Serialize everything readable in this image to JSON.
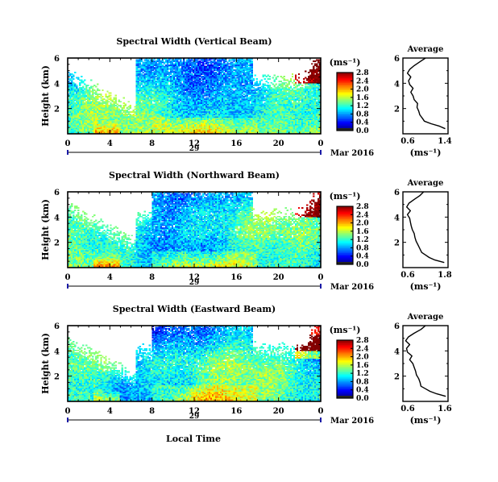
{
  "figure": {
    "xlabel": "Local Time",
    "date_day": "29",
    "date_month_year": "Mar 2016"
  },
  "chart_data": [
    {
      "type": "heatmap",
      "title": "Spectral Width (Vertical Beam)",
      "ylabel": "Height (km)",
      "xlim": [
        0,
        24
      ],
      "ylim": [
        0,
        6
      ],
      "x_ticks": [
        "0",
        "4",
        "8",
        "12",
        "16",
        "20",
        "0"
      ],
      "y_ticks": [
        "2",
        "4",
        "6"
      ],
      "colorbar": {
        "unit": "(ms⁻¹)",
        "min": 0.0,
        "max": 2.8,
        "ticks": [
          "0.0",
          "0.4",
          "0.8",
          "1.2",
          "1.6",
          "2.0",
          "2.4",
          "2.8"
        ]
      },
      "profile": {
        "title": "Average",
        "xlabel": "(ms⁻¹)",
        "xlim": [
          0.6,
          1.4
        ],
        "x_ticks": [
          "0.6",
          "1.4"
        ],
        "y_ticks": [
          "2",
          "4",
          "6"
        ],
        "height_km": [
          0.4,
          0.6,
          0.8,
          1.0,
          1.2,
          1.5,
          1.8,
          2.1,
          2.4,
          2.7,
          3.0,
          3.3,
          3.6,
          3.9,
          4.2,
          4.5,
          4.8,
          5.1,
          5.4,
          5.7,
          6.0
        ],
        "width": [
          1.35,
          1.25,
          1.1,
          0.98,
          0.95,
          0.9,
          0.88,
          0.85,
          0.86,
          0.8,
          0.78,
          0.74,
          0.78,
          0.72,
          0.7,
          0.74,
          0.68,
          0.72,
          0.8,
          0.9,
          1.0
        ]
      }
    },
    {
      "type": "heatmap",
      "title": "Spectral Width (Northward Beam)",
      "ylabel": "Height (km)",
      "xlim": [
        0,
        24
      ],
      "ylim": [
        0,
        6
      ],
      "x_ticks": [
        "0",
        "4",
        "8",
        "12",
        "16",
        "20",
        "0"
      ],
      "y_ticks": [
        "2",
        "4",
        "6"
      ],
      "colorbar": {
        "unit": "(ms⁻¹)",
        "min": 0.0,
        "max": 2.8,
        "ticks": [
          "0.0",
          "0.4",
          "0.8",
          "1.2",
          "1.6",
          "2.0",
          "2.4",
          "2.8"
        ]
      },
      "profile": {
        "title": "Average",
        "xlabel": "(ms⁻¹)",
        "xlim": [
          0.6,
          1.8
        ],
        "x_ticks": [
          "0.6",
          "1.8"
        ],
        "y_ticks": [
          "2",
          "4",
          "6"
        ],
        "height_km": [
          0.4,
          0.6,
          0.8,
          1.0,
          1.2,
          1.5,
          1.8,
          2.1,
          2.4,
          2.7,
          3.0,
          3.3,
          3.6,
          3.9,
          4.2,
          4.5,
          4.8,
          5.1,
          5.4,
          5.7,
          6.0
        ],
        "width": [
          1.7,
          1.45,
          1.3,
          1.2,
          1.1,
          1.05,
          1.0,
          0.95,
          0.92,
          0.9,
          0.85,
          0.82,
          0.8,
          0.78,
          0.72,
          0.8,
          0.7,
          0.76,
          0.9,
          1.05,
          1.15
        ]
      }
    },
    {
      "type": "heatmap",
      "title": "Spectral Width (Eastward Beam)",
      "ylabel": "Height (km)",
      "xlim": [
        0,
        24
      ],
      "ylim": [
        0,
        6
      ],
      "x_ticks": [
        "0",
        "4",
        "8",
        "12",
        "16",
        "20",
        "0"
      ],
      "y_ticks": [
        "2",
        "4",
        "6"
      ],
      "colorbar": {
        "unit": "(ms⁻¹)",
        "min": 0.0,
        "max": 2.8,
        "ticks": [
          "0.0",
          "0.4",
          "0.8",
          "1.2",
          "1.6",
          "2.0",
          "2.4",
          "2.8"
        ]
      },
      "profile": {
        "title": "Average",
        "xlabel": "(ms⁻¹)",
        "xlim": [
          0.6,
          1.6
        ],
        "x_ticks": [
          "0.6",
          "1.6"
        ],
        "y_ticks": [
          "2",
          "4",
          "6"
        ],
        "height_km": [
          0.4,
          0.6,
          0.8,
          1.0,
          1.2,
          1.5,
          1.8,
          2.1,
          2.4,
          2.7,
          3.0,
          3.3,
          3.6,
          3.9,
          4.2,
          4.5,
          4.8,
          5.1,
          5.4,
          5.7,
          6.0
        ],
        "width": [
          1.55,
          1.35,
          1.2,
          1.1,
          1.0,
          0.98,
          0.95,
          0.9,
          0.88,
          0.85,
          0.82,
          0.75,
          0.8,
          0.7,
          0.68,
          0.75,
          0.66,
          0.72,
          0.85,
          1.0,
          1.1
        ]
      }
    }
  ]
}
